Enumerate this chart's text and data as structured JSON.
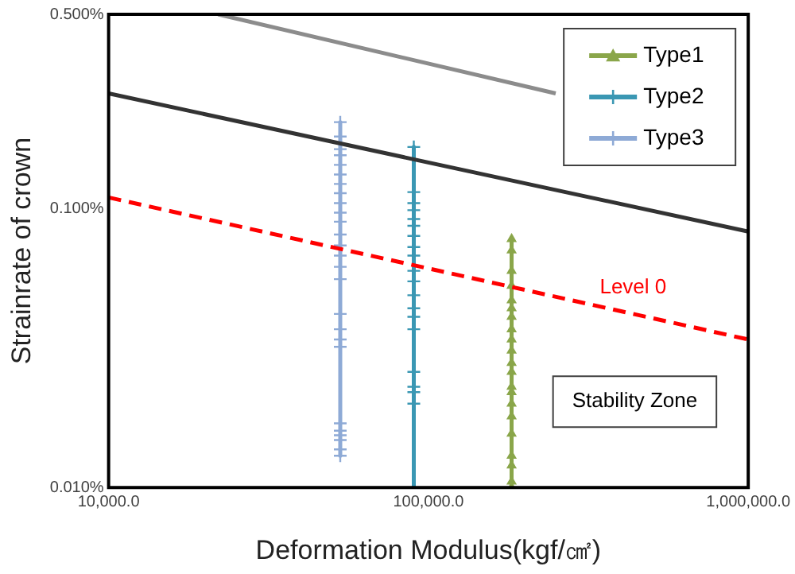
{
  "chart_data": {
    "type": "line",
    "xlabel": "Deformation Modulus(kgf/㎠)",
    "ylabel": "Strainrate of crown",
    "log": "xy",
    "grid": false,
    "legend": "top right",
    "xlim": [
      10000,
      1000000
    ],
    "xticks": [
      {
        "value": 10000,
        "label": "10,000.0"
      },
      {
        "value": 100000,
        "label": "100,000.0"
      },
      {
        "value": 1000000,
        "label": "1,000,000.0"
      }
    ],
    "ylim": [
      0.01,
      0.5
    ],
    "yticks": [
      {
        "value": 0.01,
        "label": "0.010%"
      },
      {
        "value": 0.1,
        "label": "0.100%"
      },
      {
        "value": 0.5,
        "label": "0.500%"
      }
    ],
    "annotations": [
      "Stability Zone"
    ],
    "series": [
      {
        "color": "#8c8c8c",
        "marker": "none",
        "line_style": "solid",
        "x": [
          22000,
          250000
        ],
        "values": [
          0.5,
          0.26
        ]
      },
      {
        "color": "#333333",
        "marker": "none",
        "line_style": "solid",
        "x": [
          10000,
          1000000
        ],
        "values": [
          0.26,
          0.083
        ]
      },
      {
        "name": "Level 0",
        "color": "#ff0000",
        "marker": "none",
        "line_style": "dashed",
        "x": [
          10000,
          1000000
        ],
        "values": [
          0.11,
          0.034
        ]
      },
      {
        "name": "Type1",
        "color": "#8aa64a",
        "marker": "triangle",
        "line_style": "solid",
        "x": [
          182000,
          182000,
          182000,
          182000,
          182000,
          182000,
          182000,
          182000,
          182000,
          182000,
          182000,
          182000,
          182000,
          182000,
          182000,
          182000,
          182000,
          182000,
          182000,
          182000,
          182000
        ],
        "values": [
          0.078,
          0.071,
          0.06,
          0.053,
          0.047,
          0.044,
          0.041,
          0.037,
          0.034,
          0.031,
          0.028,
          0.026,
          0.023,
          0.022,
          0.02,
          0.018,
          0.0156,
          0.013,
          0.012,
          0.0105,
          0.01
        ]
      },
      {
        "name": "Type2",
        "color": "#3a97b3",
        "marker": "cross",
        "line_style": "solid",
        "x": [
          90000,
          90000,
          90000,
          90000,
          90000,
          90000,
          90000,
          90000,
          90000,
          90000,
          90000,
          90000,
          90000,
          90000,
          90000,
          90000,
          90000,
          90000,
          90000,
          90000
        ],
        "values": [
          0.167,
          0.115,
          0.105,
          0.099,
          0.092,
          0.087,
          0.08,
          0.073,
          0.068,
          0.06,
          0.055,
          0.049,
          0.044,
          0.041,
          0.037,
          0.026,
          0.023,
          0.022,
          0.02,
          0.01
        ]
      },
      {
        "name": "Type3",
        "color": "#8eaad6",
        "marker": "cross",
        "line_style": "solid",
        "x": [
          53000,
          53000,
          53000,
          53000,
          53000,
          53000,
          53000,
          53000,
          53000,
          53000,
          53000,
          53000,
          53000,
          53000,
          53000,
          53000,
          53000,
          53000,
          53000,
          53000,
          53000,
          53000,
          53000,
          53000,
          53000,
          53000
        ],
        "values": [
          0.205,
          0.182,
          0.164,
          0.156,
          0.144,
          0.133,
          0.123,
          0.114,
          0.105,
          0.097,
          0.09,
          0.081,
          0.074,
          0.068,
          0.062,
          0.056,
          0.042,
          0.037,
          0.034,
          0.032,
          0.017,
          0.016,
          0.0154,
          0.0148,
          0.0137,
          0.013
        ]
      }
    ]
  }
}
